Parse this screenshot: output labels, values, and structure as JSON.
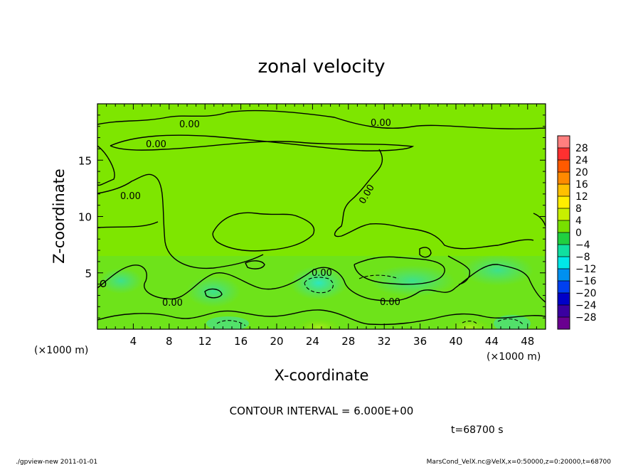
{
  "chart_data": {
    "type": "heatmap",
    "title": "zonal velocity",
    "xlabel": "X-coordinate",
    "ylabel": "Z-coordinate",
    "x_units": "(×1000 m)",
    "y_units": "(×1000 m)",
    "xlim": [
      0,
      50
    ],
    "ylim": [
      0,
      20
    ],
    "x_ticks": [
      4,
      8,
      12,
      16,
      20,
      24,
      28,
      32,
      36,
      40,
      44,
      48
    ],
    "y_ticks": [
      5,
      10,
      15
    ],
    "contour_interval_text": "CONTOUR INTERVAL = 6.000E+00",
    "contour_labels": [
      "0.00",
      "0.00",
      "0.00",
      "0.00",
      "0.00",
      "0.00",
      "0.00",
      "0.00"
    ],
    "time_label": "t=68700 s",
    "footer_left": "./gpview-new  2011-01-01",
    "footer_right": "MarsCond_VelX.nc@VelX,x=0:50000,z=0:20000,t=68700",
    "colorbar": {
      "labels": [
        "28",
        "24",
        "20",
        "16",
        "12",
        "8",
        "4",
        "0",
        "-4",
        "-8",
        "-12",
        "-16",
        "-20",
        "-24",
        "-28"
      ],
      "colors": [
        "#ff7f7f",
        "#ff3030",
        "#ff5a00",
        "#ff8a00",
        "#ffc000",
        "#ffee00",
        "#c8f000",
        "#78e000",
        "#20d040",
        "#10e0a0",
        "#00e8e8",
        "#0090f0",
        "#0040f0",
        "#0000c8",
        "#3a00a0",
        "#6a0090"
      ]
    },
    "field_summary": "mostly 0 to 4 (light green); weak negative cells (-4 to 0) near z<5 around x=13, 24, 43"
  }
}
